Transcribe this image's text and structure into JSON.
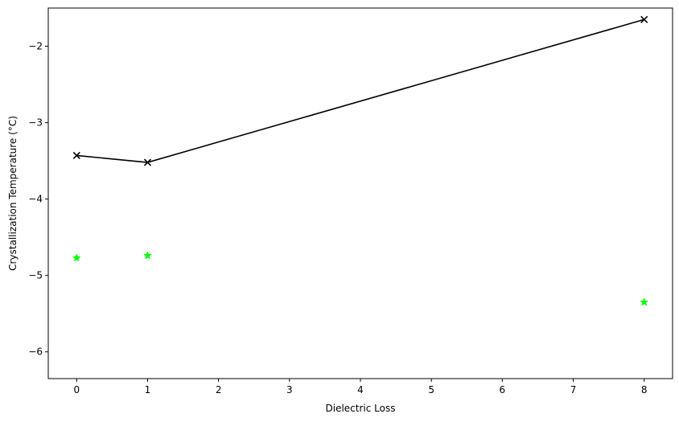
{
  "chart_data": {
    "type": "line",
    "xlabel": "Dielectric Loss",
    "ylabel": "Crystallization Temperature (°C)",
    "xlim": [
      -0.4,
      8.4
    ],
    "ylim": [
      -6.35,
      -1.5
    ],
    "x_ticks": [
      0,
      1,
      2,
      3,
      4,
      5,
      6,
      7,
      8
    ],
    "x_tick_labels": [
      "0",
      "1",
      "2",
      "3",
      "4",
      "5",
      "6",
      "7",
      "8"
    ],
    "y_ticks": [
      -6,
      -5,
      -4,
      -3,
      -2
    ],
    "y_tick_labels": [
      "−6",
      "−5",
      "−4",
      "−3",
      "−2"
    ],
    "grid": false,
    "series": [
      {
        "x": [
          0,
          1,
          8
        ],
        "values": [
          -3.43,
          -3.52,
          -1.65
        ],
        "color": "#000000",
        "marker": "x",
        "line": true
      },
      {
        "x": [
          0,
          1,
          8
        ],
        "values": [
          -4.77,
          -4.74,
          -5.35
        ],
        "color": "#00ff00",
        "marker": "star",
        "line": false
      }
    ]
  }
}
